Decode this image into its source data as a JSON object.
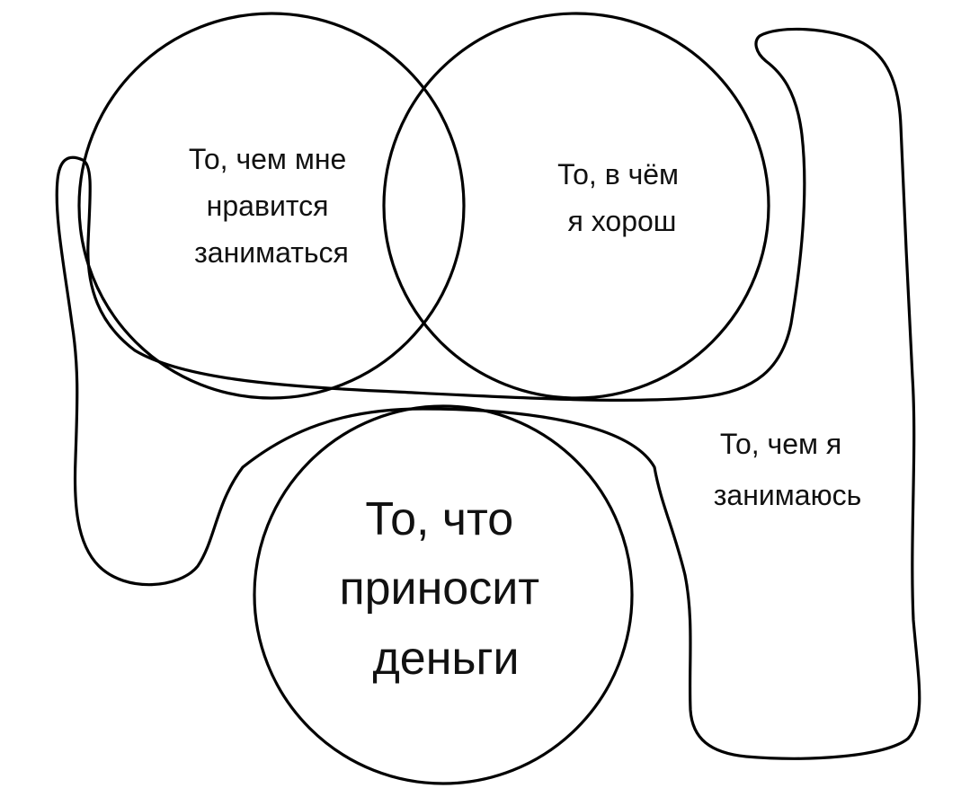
{
  "diagram": {
    "circle_like_label": [
      "То, чем мне",
      "нравится",
      "заниматься"
    ],
    "circle_good_label": [
      "То, в чём",
      "я хорош"
    ],
    "circle_money_label": [
      "То, что",
      "приносит",
      "деньги"
    ],
    "blob_do_label": [
      "То, чем я",
      "занимаюсь"
    ],
    "colors": {
      "stroke": "#000000",
      "background": "#ffffff",
      "text": "#111111"
    }
  }
}
